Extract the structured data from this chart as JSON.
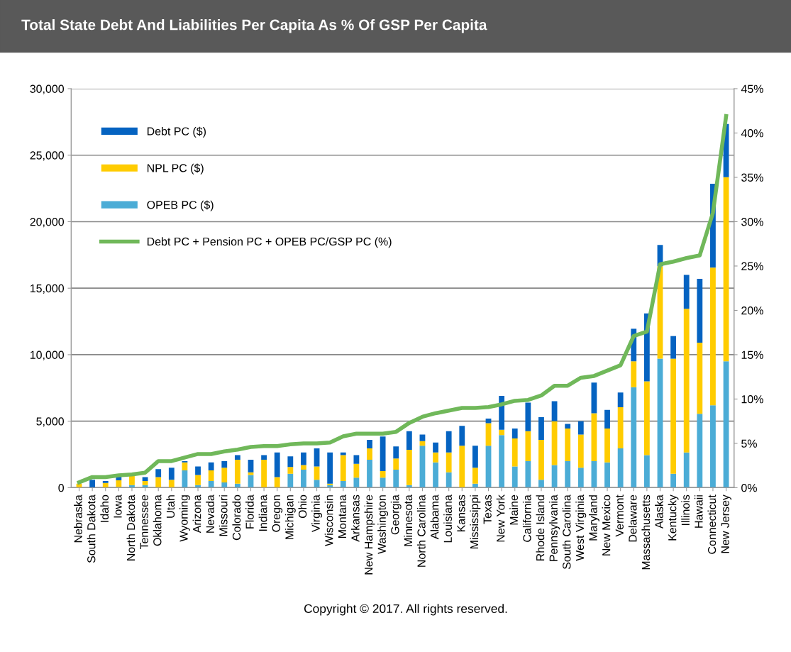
{
  "chart_data": {
    "type": "bar",
    "stacked": true,
    "title": "Total State Debt And Liabilities Per Capita As % Of GSP Per Capita",
    "categories": [
      "Nebraska",
      "South Dakota",
      "Idaho",
      "Iowa",
      "North Dakota",
      "Tennessee",
      "Oklahoma",
      "Utah",
      "Wyoming",
      "Arizona",
      "Nevada",
      "Missouri",
      "Colorado",
      "Florida",
      "Indiana",
      "Oregon",
      "Michigan",
      "Ohio",
      "Virginia",
      "Wisconsin",
      "Montana",
      "Arkansas",
      "New Hampshire",
      "Washington",
      "Georgia",
      "Minnesota",
      "North Carolina",
      "Alabama",
      "Louisiana",
      "Kansas",
      "Mississippi",
      "Texas",
      "New York",
      "Maine",
      "California",
      "Rhode Island",
      "Pennsylvania",
      "South Carolina",
      "West Virginia",
      "Maryland",
      "New Mexico",
      "Vermont",
      "Delaware",
      "Massachusetts",
      "Alaska",
      "Kentucky",
      "Illinois",
      "Hawaii",
      "Connecticut",
      "New Jersey"
    ],
    "series": [
      {
        "name": "OPEB PC ($)",
        "color": "#4bacd6",
        "values": [
          0,
          0,
          0,
          50,
          200,
          200,
          0,
          0,
          1300,
          200,
          500,
          400,
          300,
          950,
          0,
          0,
          1050,
          1350,
          600,
          200,
          500,
          750,
          2100,
          750,
          1350,
          200,
          3150,
          1900,
          1150,
          0,
          300,
          3150,
          3950,
          1600,
          2000,
          600,
          1700,
          2000,
          1500,
          2000,
          1900,
          2950,
          7550,
          2450,
          9700,
          1050,
          2650,
          5550,
          6200,
          9500
        ]
      },
      {
        "name": "NPL PC ($)",
        "color": "#ffcc00",
        "values": [
          300,
          0,
          350,
          500,
          700,
          300,
          800,
          600,
          600,
          750,
          800,
          1100,
          1800,
          200,
          2100,
          800,
          500,
          350,
          1000,
          100,
          1950,
          1050,
          850,
          500,
          850,
          2650,
          350,
          750,
          1500,
          3150,
          1200,
          1700,
          400,
          2100,
          2250,
          3000,
          3300,
          2450,
          2500,
          3600,
          2550,
          3100,
          1950,
          5550,
          6950,
          8650,
          10800,
          5350,
          10350,
          13850
        ]
      },
      {
        "name": "Debt PC ($)",
        "color": "#0563c1",
        "values": [
          0,
          600,
          150,
          300,
          0,
          300,
          600,
          900,
          100,
          650,
          600,
          500,
          350,
          950,
          350,
          1850,
          800,
          950,
          1350,
          2350,
          200,
          650,
          650,
          2600,
          900,
          1400,
          500,
          750,
          1600,
          1500,
          1650,
          350,
          2550,
          750,
          2150,
          1700,
          1500,
          350,
          1000,
          2300,
          1400,
          1100,
          2450,
          5100,
          1600,
          1700,
          2550,
          4800,
          6300,
          4000
        ]
      },
      {
        "name": "Debt PC + Pension PC + OPEB PC/GSP PC (%)",
        "type": "line",
        "axis": "y2",
        "color": "#70b85a",
        "marker": "none",
        "line_style": "solid",
        "values": [
          0.6,
          1.2,
          1.2,
          1.4,
          1.5,
          1.7,
          3.0,
          3.0,
          3.4,
          3.8,
          3.8,
          4.1,
          4.3,
          4.6,
          4.7,
          4.7,
          4.9,
          5.0,
          5.0,
          5.1,
          5.8,
          6.1,
          6.1,
          6.1,
          6.3,
          7.3,
          8.0,
          8.4,
          8.7,
          9.0,
          9.0,
          9.1,
          9.4,
          9.8,
          9.9,
          10.4,
          11.5,
          11.5,
          12.4,
          12.6,
          13.2,
          13.8,
          17.1,
          17.6,
          25.2,
          25.5,
          25.9,
          26.2,
          31.0,
          41.9
        ]
      }
    ],
    "ylim": [
      0,
      30000
    ],
    "yticks": [
      {
        "value": 0,
        "label": "0"
      },
      {
        "value": 5000,
        "label": "5,000"
      },
      {
        "value": 10000,
        "label": "10,000"
      },
      {
        "value": 15000,
        "label": "15,000"
      },
      {
        "value": 20000,
        "label": "20,000"
      },
      {
        "value": 25000,
        "label": "25,000"
      },
      {
        "value": 30000,
        "label": "30,000"
      }
    ],
    "y2lim": [
      0,
      45
    ],
    "y2ticks": [
      {
        "value": 0,
        "label": "0%"
      },
      {
        "value": 5,
        "label": "5%"
      },
      {
        "value": 10,
        "label": "10%"
      },
      {
        "value": 15,
        "label": "15%"
      },
      {
        "value": 20,
        "label": "20%"
      },
      {
        "value": 25,
        "label": "25%"
      },
      {
        "value": 30,
        "label": "30%"
      },
      {
        "value": 35,
        "label": "35%"
      },
      {
        "value": 40,
        "label": "40%"
      },
      {
        "value": 45,
        "label": "45%"
      }
    ],
    "grid": "y",
    "legend": "top left",
    "annotations": [
      "Copyright © 2017. All rights reserved."
    ]
  }
}
